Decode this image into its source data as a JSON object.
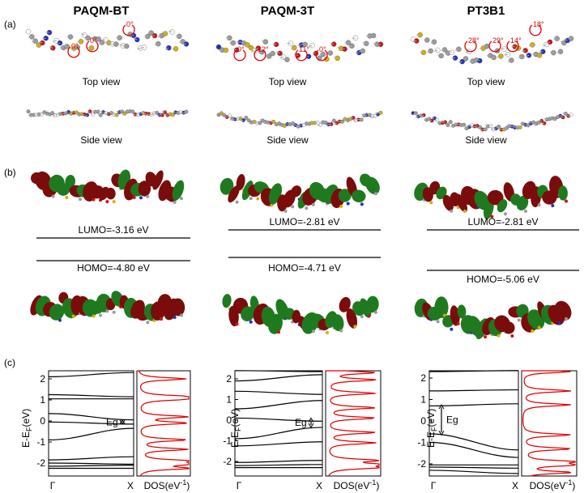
{
  "panel_labels": [
    "(a)",
    "(b)",
    "(c)"
  ],
  "columns": [
    {
      "title": "PAQM-BT",
      "angles": [
        "0°",
        "0°",
        "0°"
      ],
      "top_view": "Top view",
      "side_view": "Side view",
      "lumo": "LUMO=-3.16 eV",
      "homo": "HOMO=-4.80 eV",
      "bands": {
        "yticks": [
          "2",
          "1",
          "0",
          "-1",
          "-2"
        ],
        "ylabel": "E-E",
        "ylabel_sub": "F",
        "ylabel_unit": "(eV)",
        "x_start": "Γ",
        "x_end": "X",
        "dos": "DOS(eV",
        "dos_sup": "-1",
        "dos_end": ")",
        "eg": "Eg"
      }
    },
    {
      "title": "PAQM-3T",
      "angles": [
        "0°",
        "12°",
        "11°",
        "0°"
      ],
      "top_view": "Top view",
      "side_view": "Side view",
      "lumo": "LUMO=-2.81 eV",
      "homo": "HOMO=-4.71 eV",
      "bands": {
        "yticks": [
          "2",
          "1",
          "0",
          "-1",
          "-2"
        ],
        "ylabel": "E-E",
        "ylabel_sub": "F",
        "ylabel_unit": "(eV)",
        "x_start": "Γ",
        "x_end": "X",
        "dos": "DOS(eV",
        "dos_sup": "-1",
        "dos_end": ")",
        "eg": "Eg"
      }
    },
    {
      "title": "PT3B1",
      "angles": [
        "28°",
        "29°",
        "14°",
        "18°"
      ],
      "top_view": "Top view",
      "side_view": "Side view",
      "lumo": "LUMO=-2.81 eV",
      "homo": "HOMO=-5.06 eV",
      "bands": {
        "yticks": [
          "2",
          "1",
          "0",
          "-1",
          "-2"
        ],
        "ylabel": "E-E",
        "ylabel_sub": "F",
        "ylabel_unit": "(eV)",
        "x_start": "Γ",
        "x_end": "X",
        "dos": "DOS(eV",
        "dos_sup": "-1",
        "dos_end": ")",
        "eg": "Eg"
      }
    }
  ]
}
